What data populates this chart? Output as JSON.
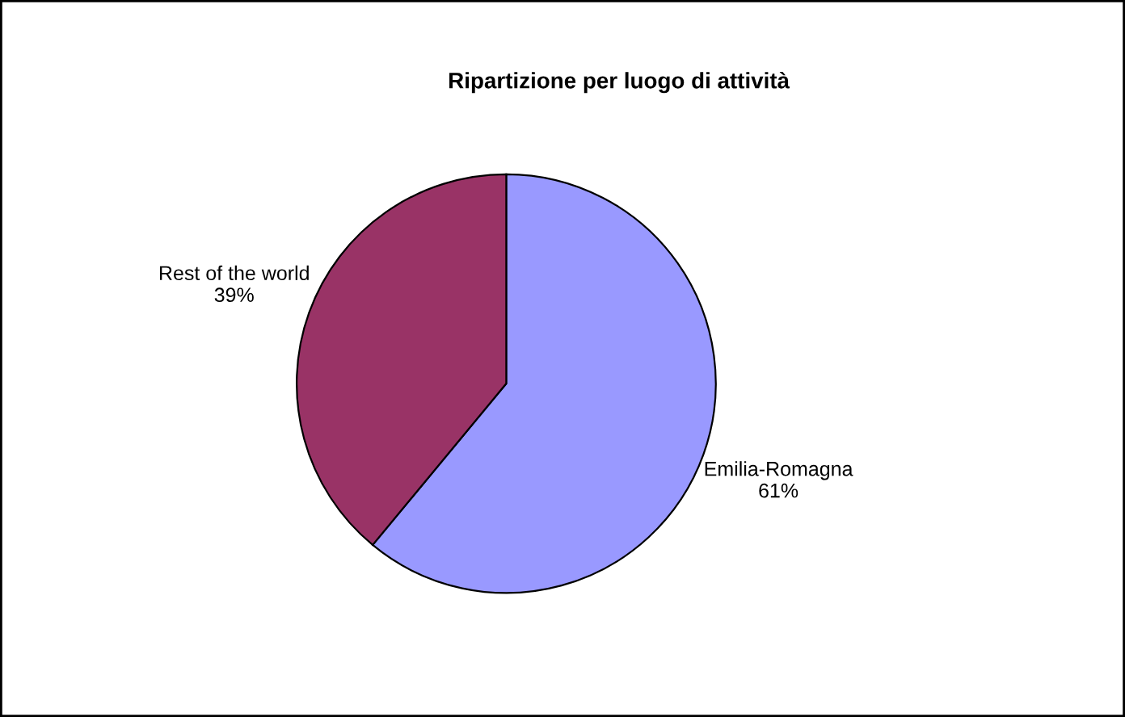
{
  "chart_data": {
    "type": "pie",
    "title": "Ripartizione per luogo di attività",
    "categories": [
      "Emilia-Romagna",
      "Rest of the world"
    ],
    "values": [
      61,
      39
    ],
    "colors": [
      "#9999ff",
      "#993366"
    ],
    "value_labels": [
      "61%",
      "39%"
    ],
    "legend": false
  }
}
